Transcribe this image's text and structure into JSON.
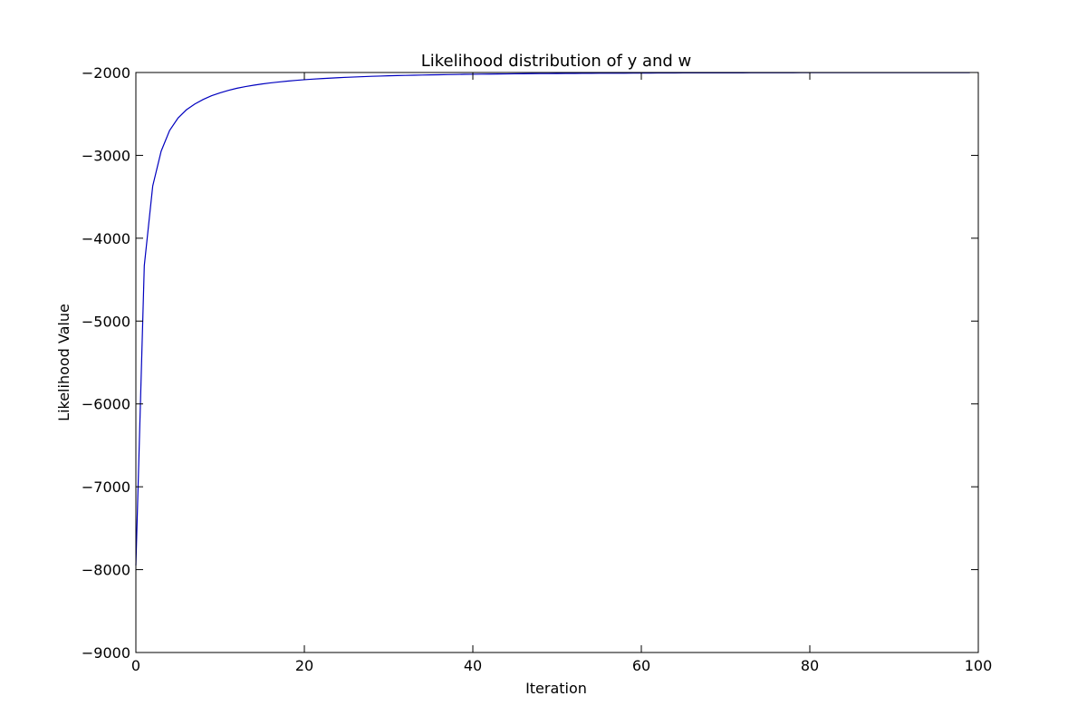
{
  "chart_data": {
    "type": "line",
    "title": "Likelihood distribution of y and w",
    "xlabel": "Iteration",
    "ylabel": "Likelihood Value",
    "xlim": [
      0,
      100
    ],
    "ylim": [
      -9000,
      -2000
    ],
    "xticks": [
      0,
      20,
      40,
      60,
      80,
      100
    ],
    "yticks": [
      -9000,
      -8000,
      -7000,
      -6000,
      -5000,
      -4000,
      -3000,
      -2000
    ],
    "xtick_labels": [
      "0",
      "20",
      "40",
      "60",
      "80",
      "100"
    ],
    "ytick_labels": [
      "−9000",
      "−8000",
      "−7000",
      "−6000",
      "−5000",
      "−4000",
      "−3000",
      "−2000"
    ],
    "grid": false,
    "series": [
      {
        "color": "#0000bf",
        "x": [
          0,
          1,
          2,
          3,
          4,
          5,
          6,
          7,
          8,
          9,
          10,
          11,
          12,
          13,
          14,
          15,
          16,
          17,
          18,
          19,
          20,
          21,
          22,
          23,
          24,
          25,
          26,
          27,
          28,
          29,
          30,
          31,
          32,
          33,
          34,
          35,
          36,
          37,
          38,
          39,
          40,
          41,
          42,
          43,
          44,
          45,
          46,
          47,
          48,
          49,
          50,
          51,
          52,
          53,
          54,
          55,
          56,
          57,
          58,
          59,
          60,
          61,
          62,
          63,
          64,
          65,
          66,
          67,
          68,
          69,
          70,
          71,
          72,
          73,
          74,
          75,
          76,
          77,
          78,
          79,
          80,
          81,
          82,
          83,
          84,
          85,
          86,
          87,
          88,
          89,
          90,
          91,
          92,
          93,
          94,
          95,
          96,
          97,
          98,
          99
        ],
        "y": [
          -7950,
          -4330,
          -3370,
          -2950,
          -2700,
          -2550,
          -2450,
          -2380,
          -2325,
          -2280,
          -2245,
          -2215,
          -2190,
          -2170,
          -2153,
          -2138,
          -2125,
          -2114,
          -2104,
          -2095,
          -2087,
          -2080,
          -2074,
          -2068,
          -2063,
          -2058,
          -2054,
          -2050,
          -2046,
          -2043,
          -2040,
          -2037,
          -2035,
          -2033,
          -2031,
          -2029,
          -2027,
          -2025,
          -2024,
          -2022,
          -2021,
          -2020,
          -2019,
          -2018,
          -2017,
          -2016,
          -2015,
          -2014,
          -2013,
          -2013,
          -2012,
          -2011,
          -2011,
          -2010,
          -2010,
          -2009,
          -2009,
          -2008,
          -2008,
          -2007,
          -2007,
          -2007,
          -2006,
          -2006,
          -2006,
          -2005,
          -2005,
          -2005,
          -2005,
          -2004,
          -2004,
          -2004,
          -2004,
          -2003,
          -2003,
          -2003,
          -2003,
          -2003,
          -2003,
          -2002,
          -2002,
          -2002,
          -2002,
          -2002,
          -2002,
          -2002,
          -2002,
          -2001,
          -2001,
          -2001,
          -2001,
          -2001,
          -2001,
          -2001,
          -2001,
          -2001,
          -2001,
          -2001,
          -2001,
          -2001
        ]
      }
    ]
  }
}
